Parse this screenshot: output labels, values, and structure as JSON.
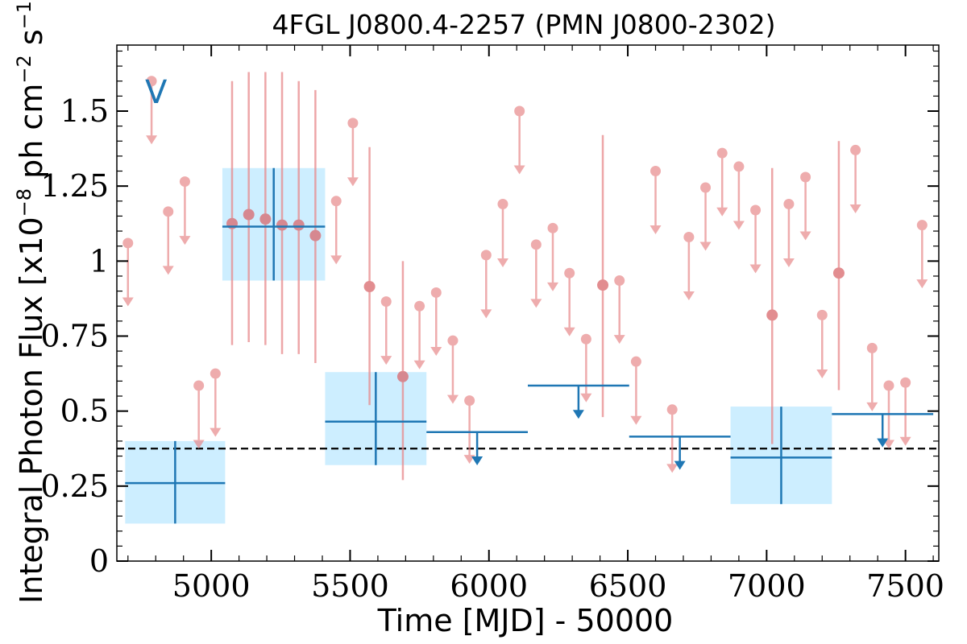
{
  "chart_data": {
    "type": "scatter",
    "title": "4FGL J0800.4-2257 (PMN J0800-2302)",
    "xlabel": "Time [MJD] - 50000",
    "ylabel_main": "Integral Photon Flux [x10",
    "ylabel_exp1": "−8",
    "ylabel_units": " ph cm",
    "ylabel_exp2": "−2",
    "ylabel_s": " s",
    "ylabel_exp3": "−1",
    "ylabel_close": "]",
    "annotation": "V",
    "xlim": [
      4660,
      7620
    ],
    "ylim": [
      0,
      1.72
    ],
    "xticks": [
      5000,
      5500,
      6000,
      6500,
      7000,
      7500
    ],
    "xtick_labels": [
      "5000",
      "5500",
      "6000",
      "6500",
      "7000",
      "7500"
    ],
    "yticks": [
      0,
      0.25,
      0.5,
      0.75,
      1,
      1.25,
      1.5
    ],
    "ytick_labels": [
      "0",
      "0.25",
      "0.5",
      "0.75",
      "1",
      "1.25",
      "1.5"
    ],
    "reference_line": 0.375,
    "colors": {
      "fine": "#e8898b",
      "fine_detect": "#d9676c",
      "coarse": "#1f77b4",
      "box": "#cdeeff",
      "ref": "#000000"
    },
    "fine_upper_limits": [
      {
        "x": 4700,
        "y": 1.06
      },
      {
        "x": 4785,
        "y": 1.6
      },
      {
        "x": 4845,
        "y": 1.165
      },
      {
        "x": 4905,
        "y": 1.265
      },
      {
        "x": 4955,
        "y": 0.585
      },
      {
        "x": 5015,
        "y": 0.625
      },
      {
        "x": 5450,
        "y": 1.2
      },
      {
        "x": 5510,
        "y": 1.46
      },
      {
        "x": 5630,
        "y": 0.865
      },
      {
        "x": 5750,
        "y": 0.85
      },
      {
        "x": 5810,
        "y": 0.895
      },
      {
        "x": 5870,
        "y": 0.735
      },
      {
        "x": 5930,
        "y": 0.535
      },
      {
        "x": 5990,
        "y": 1.02
      },
      {
        "x": 6050,
        "y": 1.19
      },
      {
        "x": 6110,
        "y": 1.5
      },
      {
        "x": 6170,
        "y": 1.055
      },
      {
        "x": 6230,
        "y": 1.11
      },
      {
        "x": 6290,
        "y": 0.96
      },
      {
        "x": 6350,
        "y": 0.74
      },
      {
        "x": 6470,
        "y": 0.935
      },
      {
        "x": 6530,
        "y": 0.665
      },
      {
        "x": 6600,
        "y": 1.3
      },
      {
        "x": 6660,
        "y": 0.505
      },
      {
        "x": 6720,
        "y": 1.08
      },
      {
        "x": 6780,
        "y": 1.245
      },
      {
        "x": 6840,
        "y": 1.36
      },
      {
        "x": 6900,
        "y": 1.315
      },
      {
        "x": 6960,
        "y": 1.17
      },
      {
        "x": 7080,
        "y": 1.19
      },
      {
        "x": 7140,
        "y": 1.28
      },
      {
        "x": 7200,
        "y": 0.82
      },
      {
        "x": 7320,
        "y": 1.37
      },
      {
        "x": 7380,
        "y": 0.71
      },
      {
        "x": 7440,
        "y": 0.585
      },
      {
        "x": 7500,
        "y": 0.595
      },
      {
        "x": 7560,
        "y": 1.12
      }
    ],
    "fine_detections": [
      {
        "x": 5075,
        "y": 1.125,
        "ylo": 0.72,
        "yhi": 1.6
      },
      {
        "x": 5135,
        "y": 1.155,
        "ylo": 0.73,
        "yhi": 1.63
      },
      {
        "x": 5195,
        "y": 1.14,
        "ylo": 0.72,
        "yhi": 1.63
      },
      {
        "x": 5255,
        "y": 1.12,
        "ylo": 0.69,
        "yhi": 1.63
      },
      {
        "x": 5315,
        "y": 1.12,
        "ylo": 0.69,
        "yhi": 1.6
      },
      {
        "x": 5375,
        "y": 1.085,
        "ylo": 0.66,
        "yhi": 1.57
      },
      {
        "x": 5570,
        "y": 0.915,
        "ylo": 0.52,
        "yhi": 1.38
      },
      {
        "x": 5690,
        "y": 0.615,
        "ylo": 0.27,
        "yhi": 1.0
      },
      {
        "x": 6410,
        "y": 0.92,
        "ylo": 0.48,
        "yhi": 1.42
      },
      {
        "x": 7020,
        "y": 0.82,
        "ylo": 0.39,
        "yhi": 1.31
      },
      {
        "x": 7260,
        "y": 0.96,
        "ylo": 0.57,
        "yhi": 1.4
      }
    ],
    "coarse_detections": [
      {
        "x0": 4690,
        "x1": 5050,
        "y": 0.26,
        "ylo": 0.125,
        "yhi": 0.4
      },
      {
        "x0": 5040,
        "x1": 5410,
        "y": 1.115,
        "ylo": 0.935,
        "yhi": 1.31
      },
      {
        "x0": 5410,
        "x1": 5775,
        "y": 0.465,
        "ylo": 0.32,
        "yhi": 0.63
      },
      {
        "x0": 6870,
        "x1": 7235,
        "y": 0.345,
        "ylo": 0.19,
        "yhi": 0.515
      }
    ],
    "coarse_upper_limits": [
      {
        "x0": 5775,
        "x1": 6140,
        "y": 0.43
      },
      {
        "x0": 6140,
        "x1": 6505,
        "y": 0.585
      },
      {
        "x0": 6505,
        "x1": 6870,
        "y": 0.415
      },
      {
        "x0": 7235,
        "x1": 7600,
        "y": 0.49
      }
    ]
  }
}
